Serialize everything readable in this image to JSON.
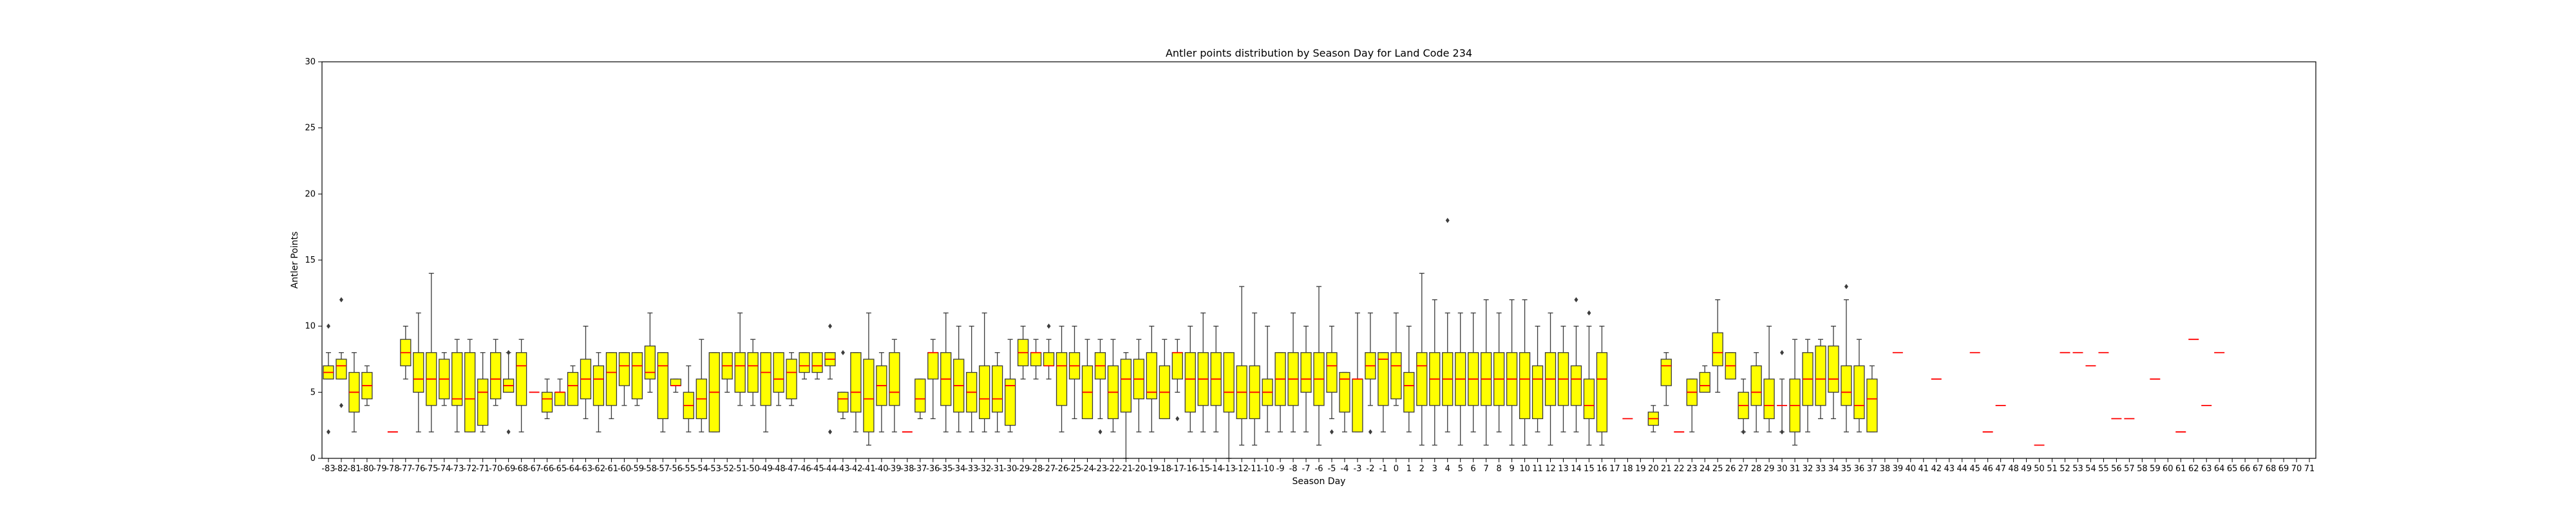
{
  "chart_data": {
    "type": "box",
    "title": "Antler points distribution by Season Day for Land Code 234",
    "xlabel": "Season Day",
    "ylabel": "Antler Points",
    "ylim": [
      0,
      30
    ],
    "yticks": [
      0,
      5,
      10,
      15,
      20,
      25,
      30
    ],
    "grid": false,
    "legend": "none",
    "box_color": "#ffff00",
    "median_color": "#ff0000",
    "edge_color": "#3a3a3a",
    "categories": [
      "-83",
      "-82",
      "-81",
      "-80",
      "-79",
      "-78",
      "-77",
      "-76",
      "-75",
      "-74",
      "-73",
      "-72",
      "-71",
      "-70",
      "-69",
      "-68",
      "-67",
      "-66",
      "-65",
      "-64",
      "-63",
      "-62",
      "-61",
      "-60",
      "-59",
      "-58",
      "-57",
      "-56",
      "-55",
      "-54",
      "-53",
      "-52",
      "-51",
      "-50",
      "-49",
      "-48",
      "-47",
      "-46",
      "-45",
      "-44",
      "-43",
      "-42",
      "-41",
      "-40",
      "-39",
      "-38",
      "-37",
      "-36",
      "-35",
      "-34",
      "-33",
      "-32",
      "-31",
      "-30",
      "-29",
      "-28",
      "-27",
      "-26",
      "-25",
      "-24",
      "-23",
      "-22",
      "-21",
      "-20",
      "-19",
      "-18",
      "-17",
      "-16",
      "-15",
      "-14",
      "-13",
      "-12",
      "-11",
      "-10",
      "-9",
      "-8",
      "-7",
      "-6",
      "-5",
      "-4",
      "-3",
      "-2",
      "-1",
      "0",
      "1",
      "2",
      "3",
      "4",
      "5",
      "6",
      "7",
      "8",
      "9",
      "10",
      "11",
      "12",
      "13",
      "14",
      "15",
      "16",
      "17",
      "18",
      "19",
      "20",
      "21",
      "22",
      "23",
      "24",
      "25",
      "26",
      "27",
      "28",
      "29",
      "30",
      "31",
      "32",
      "33",
      "34",
      "35",
      "36",
      "37",
      "38",
      "39",
      "40",
      "41",
      "42",
      "43",
      "44",
      "45",
      "46",
      "47",
      "48",
      "49",
      "50",
      "51",
      "52",
      "53",
      "54",
      "55",
      "56",
      "57",
      "58",
      "59",
      "60",
      "61",
      "62",
      "63",
      "64",
      "65",
      "66",
      "67",
      "68",
      "69",
      "70",
      "71"
    ],
    "boxes": {
      "-83": {
        "wl": 6,
        "q1": 6,
        "med": 6.5,
        "q3": 7,
        "wh": 8,
        "out": [
          2,
          10
        ]
      },
      "-82": {
        "wl": 6,
        "q1": 6,
        "med": 7,
        "q3": 7.5,
        "wh": 8,
        "out": [
          4,
          12
        ]
      },
      "-81": {
        "wl": 2,
        "q1": 3.5,
        "med": 5,
        "q3": 6.5,
        "wh": 8
      },
      "-80": {
        "wl": 4,
        "q1": 4.5,
        "med": 5.5,
        "q3": 6.5,
        "wh": 7
      },
      "-78": {
        "wl": 2,
        "q1": 2,
        "med": 2,
        "q3": 2,
        "wh": 2
      },
      "-77": {
        "wl": 6,
        "q1": 7,
        "med": 8,
        "q3": 9,
        "wh": 10
      },
      "-76": {
        "wl": 2,
        "q1": 5,
        "med": 6,
        "q3": 8,
        "wh": 11
      },
      "-75": {
        "wl": 2,
        "q1": 4,
        "med": 6,
        "q3": 8,
        "wh": 14
      },
      "-74": {
        "wl": 4,
        "q1": 4.5,
        "med": 6,
        "q3": 7.5,
        "wh": 8
      },
      "-73": {
        "wl": 2,
        "q1": 4,
        "med": 4.5,
        "q3": 8,
        "wh": 9
      },
      "-72": {
        "wl": 2,
        "q1": 2,
        "med": 4.5,
        "q3": 8,
        "wh": 9
      },
      "-71": {
        "wl": 2,
        "q1": 2.5,
        "med": 5,
        "q3": 6,
        "wh": 8
      },
      "-70": {
        "wl": 4,
        "q1": 4.5,
        "med": 6,
        "q3": 8,
        "wh": 9
      },
      "-69": {
        "wl": 5,
        "q1": 5,
        "med": 5.5,
        "q3": 6,
        "wh": 8,
        "out": [
          2,
          8
        ]
      },
      "-68": {
        "wl": 2,
        "q1": 4,
        "med": 7,
        "q3": 8,
        "wh": 9
      },
      "-67": {
        "wl": 5,
        "q1": 5,
        "med": 5,
        "q3": 5,
        "wh": 5
      },
      "-66": {
        "wl": 3,
        "q1": 3.5,
        "med": 4.5,
        "q3": 5,
        "wh": 6
      },
      "-65": {
        "wl": 4,
        "q1": 4,
        "med": 5,
        "q3": 5,
        "wh": 6
      },
      "-64": {
        "wl": 4,
        "q1": 4,
        "med": 5.5,
        "q3": 6.5,
        "wh": 7
      },
      "-63": {
        "wl": 3,
        "q1": 4.5,
        "med": 6,
        "q3": 7.5,
        "wh": 10
      },
      "-62": {
        "wl": 2,
        "q1": 4,
        "med": 6,
        "q3": 7,
        "wh": 8
      },
      "-61": {
        "wl": 3,
        "q1": 4,
        "med": 6.5,
        "q3": 8,
        "wh": 8
      },
      "-60": {
        "wl": 4,
        "q1": 5.5,
        "med": 7,
        "q3": 8,
        "wh": 8
      },
      "-59": {
        "wl": 4,
        "q1": 4.5,
        "med": 7,
        "q3": 8,
        "wh": 8
      },
      "-58": {
        "wl": 5,
        "q1": 6,
        "med": 6.5,
        "q3": 8.5,
        "wh": 11
      },
      "-57": {
        "wl": 2,
        "q1": 3,
        "med": 7,
        "q3": 8,
        "wh": 8
      },
      "-56": {
        "wl": 5,
        "q1": 5.5,
        "med": 5.5,
        "q3": 6,
        "wh": 6
      },
      "-55": {
        "wl": 2,
        "q1": 3,
        "med": 4,
        "q3": 5,
        "wh": 7
      },
      "-54": {
        "wl": 2,
        "q1": 3,
        "med": 4.5,
        "q3": 6,
        "wh": 9
      },
      "-53": {
        "wl": 2,
        "q1": 2,
        "med": 5,
        "q3": 8,
        "wh": 8
      },
      "-52": {
        "wl": 5,
        "q1": 6,
        "med": 7,
        "q3": 8,
        "wh": 8
      },
      "-51": {
        "wl": 4,
        "q1": 5,
        "med": 7,
        "q3": 8,
        "wh": 11
      },
      "-50": {
        "wl": 4,
        "q1": 5,
        "med": 7,
        "q3": 8,
        "wh": 9
      },
      "-49": {
        "wl": 2,
        "q1": 4,
        "med": 6.5,
        "q3": 8,
        "wh": 8
      },
      "-48": {
        "wl": 4,
        "q1": 5,
        "med": 6,
        "q3": 8,
        "wh": 8
      },
      "-47": {
        "wl": 4,
        "q1": 4.5,
        "med": 6.5,
        "q3": 7.5,
        "wh": 8
      },
      "-46": {
        "wl": 6,
        "q1": 6.5,
        "med": 7,
        "q3": 8,
        "wh": 8
      },
      "-45": {
        "wl": 6,
        "q1": 6.5,
        "med": 7,
        "q3": 8,
        "wh": 8
      },
      "-44": {
        "wl": 6,
        "q1": 7,
        "med": 7.5,
        "q3": 8,
        "wh": 8,
        "out": [
          2,
          10
        ]
      },
      "-43": {
        "wl": 3,
        "q1": 3.5,
        "med": 4.5,
        "q3": 5,
        "wh": 5,
        "out": [
          8
        ]
      },
      "-42": {
        "wl": 2,
        "q1": 3.5,
        "med": 5,
        "q3": 8,
        "wh": 8
      },
      "-41": {
        "wl": 1,
        "q1": 2,
        "med": 4.5,
        "q3": 7.5,
        "wh": 11
      },
      "-40": {
        "wl": 2,
        "q1": 4,
        "med": 5.5,
        "q3": 7,
        "wh": 8
      },
      "-39": {
        "wl": 2,
        "q1": 4,
        "med": 5,
        "q3": 8,
        "wh": 9
      },
      "-38": {
        "wl": 2,
        "q1": 2,
        "med": 2,
        "q3": 2,
        "wh": 2
      },
      "-37": {
        "wl": 3,
        "q1": 3.5,
        "med": 4.5,
        "q3": 6,
        "wh": 6
      },
      "-36": {
        "wl": 3,
        "q1": 6,
        "med": 8,
        "q3": 8,
        "wh": 9
      },
      "-35": {
        "wl": 2,
        "q1": 4,
        "med": 6,
        "q3": 8,
        "wh": 11
      },
      "-34": {
        "wl": 2,
        "q1": 3.5,
        "med": 5.5,
        "q3": 7.5,
        "wh": 10
      },
      "-33": {
        "wl": 2,
        "q1": 3.5,
        "med": 5,
        "q3": 6.5,
        "wh": 10
      },
      "-32": {
        "wl": 2,
        "q1": 3,
        "med": 4.5,
        "q3": 7,
        "wh": 11
      },
      "-31": {
        "wl": 2,
        "q1": 3.5,
        "med": 4.5,
        "q3": 7,
        "wh": 8
      },
      "-30": {
        "wl": 2,
        "q1": 2.5,
        "med": 5.5,
        "q3": 6,
        "wh": 9
      },
      "-29": {
        "wl": 6,
        "q1": 7,
        "med": 8,
        "q3": 9,
        "wh": 10
      },
      "-28": {
        "wl": 6,
        "q1": 7,
        "med": 8,
        "q3": 8,
        "wh": 9
      },
      "-27": {
        "wl": 6,
        "q1": 7,
        "med": 7,
        "q3": 8,
        "wh": 9,
        "out": [
          10
        ]
      },
      "-26": {
        "wl": 2,
        "q1": 4,
        "med": 7,
        "q3": 8,
        "wh": 10
      },
      "-25": {
        "wl": 3,
        "q1": 6,
        "med": 7,
        "q3": 8,
        "wh": 10
      },
      "-24": {
        "wl": 3,
        "q1": 3,
        "med": 5,
        "q3": 7,
        "wh": 9
      },
      "-23": {
        "wl": 3,
        "q1": 6,
        "med": 7,
        "q3": 8,
        "wh": 9,
        "out": [
          2
        ]
      },
      "-22": {
        "wl": 2,
        "q1": 3,
        "med": 5,
        "q3": 7,
        "wh": 9
      },
      "-21": {
        "wl": 0,
        "q1": 3.5,
        "med": 6,
        "q3": 7.5,
        "wh": 8
      },
      "-20": {
        "wl": 2,
        "q1": 4.5,
        "med": 6,
        "q3": 7.5,
        "wh": 9
      },
      "-19": {
        "wl": 2,
        "q1": 4.5,
        "med": 5,
        "q3": 8,
        "wh": 10
      },
      "-18": {
        "wl": 3,
        "q1": 3,
        "med": 5,
        "q3": 7,
        "wh": 9
      },
      "-17": {
        "wl": 5,
        "q1": 6,
        "med": 8,
        "q3": 8,
        "wh": 9,
        "out": [
          3
        ]
      },
      "-16": {
        "wl": 2,
        "q1": 3.5,
        "med": 6,
        "q3": 8,
        "wh": 10
      },
      "-15": {
        "wl": 2,
        "q1": 4,
        "med": 6,
        "q3": 8,
        "wh": 11
      },
      "-14": {
        "wl": 2,
        "q1": 4,
        "med": 6,
        "q3": 8,
        "wh": 10
      },
      "-13": {
        "wl": 0,
        "q1": 3.5,
        "med": 5,
        "q3": 8,
        "wh": 8
      },
      "-12": {
        "wl": 1,
        "q1": 3,
        "med": 5,
        "q3": 7,
        "wh": 13
      },
      "-11": {
        "wl": 1,
        "q1": 3,
        "med": 5,
        "q3": 7,
        "wh": 11
      },
      "-10": {
        "wl": 2,
        "q1": 4,
        "med": 5,
        "q3": 6,
        "wh": 10
      },
      "-9": {
        "wl": 2,
        "q1": 4,
        "med": 6,
        "q3": 8,
        "wh": 8
      },
      "-8": {
        "wl": 2,
        "q1": 4,
        "med": 6,
        "q3": 8,
        "wh": 11
      },
      "-7": {
        "wl": 2,
        "q1": 5,
        "med": 6,
        "q3": 8,
        "wh": 10
      },
      "-6": {
        "wl": 1,
        "q1": 4,
        "med": 6,
        "q3": 8,
        "wh": 13
      },
      "-5": {
        "wl": 3,
        "q1": 5,
        "med": 7,
        "q3": 8,
        "wh": 10,
        "out": [
          2
        ]
      },
      "-4": {
        "wl": 2,
        "q1": 3.5,
        "med": 6,
        "q3": 6.5,
        "wh": 6.5
      },
      "-3": {
        "wl": 2,
        "q1": 2,
        "med": 6,
        "q3": 6,
        "wh": 11
      },
      "-2": {
        "wl": 4,
        "q1": 6,
        "med": 7,
        "q3": 8,
        "wh": 11,
        "out": [
          2
        ]
      },
      "-1": {
        "wl": 2,
        "q1": 4,
        "med": 7.5,
        "q3": 8,
        "wh": 8
      },
      "0": {
        "wl": 4,
        "q1": 4.5,
        "med": 7,
        "q3": 8,
        "wh": 11
      },
      "1": {
        "wl": 2,
        "q1": 3.5,
        "med": 5.5,
        "q3": 6.5,
        "wh": 10
      },
      "2": {
        "wl": 1,
        "q1": 4,
        "med": 7,
        "q3": 8,
        "wh": 14
      },
      "3": {
        "wl": 1,
        "q1": 4,
        "med": 6,
        "q3": 8,
        "wh": 12
      },
      "4": {
        "wl": 2,
        "q1": 4,
        "med": 6,
        "q3": 8,
        "wh": 11,
        "out": [
          18
        ]
      },
      "5": {
        "wl": 1,
        "q1": 4,
        "med": 6,
        "q3": 8,
        "wh": 11
      },
      "6": {
        "wl": 2,
        "q1": 4,
        "med": 6,
        "q3": 8,
        "wh": 11
      },
      "7": {
        "wl": 1,
        "q1": 4,
        "med": 6,
        "q3": 8,
        "wh": 12
      },
      "8": {
        "wl": 2,
        "q1": 4,
        "med": 6,
        "q3": 8,
        "wh": 11
      },
      "9": {
        "wl": 1,
        "q1": 4,
        "med": 6,
        "q3": 8,
        "wh": 12
      },
      "10": {
        "wl": 1,
        "q1": 3,
        "med": 6,
        "q3": 8,
        "wh": 12
      },
      "11": {
        "wl": 2,
        "q1": 3,
        "med": 6,
        "q3": 7,
        "wh": 10
      },
      "12": {
        "wl": 1,
        "q1": 4,
        "med": 6,
        "q3": 8,
        "wh": 11
      },
      "13": {
        "wl": 2,
        "q1": 4,
        "med": 6,
        "q3": 8,
        "wh": 10
      },
      "14": {
        "wl": 2,
        "q1": 4,
        "med": 6,
        "q3": 7,
        "wh": 10,
        "out": [
          12
        ]
      },
      "15": {
        "wl": 1,
        "q1": 3,
        "med": 4,
        "q3": 6,
        "wh": 10,
        "out": [
          11
        ]
      },
      "16": {
        "wl": 1,
        "q1": 2,
        "med": 6,
        "q3": 8,
        "wh": 10
      },
      "18": {
        "wl": 3,
        "q1": 3,
        "med": 3,
        "q3": 3,
        "wh": 3
      },
      "20": {
        "wl": 2,
        "q1": 2.5,
        "med": 3,
        "q3": 3.5,
        "wh": 4
      },
      "21": {
        "wl": 4,
        "q1": 5.5,
        "med": 7,
        "q3": 7.5,
        "wh": 8
      },
      "22": {
        "wl": 2,
        "q1": 2,
        "med": 2,
        "q3": 2,
        "wh": 2
      },
      "23": {
        "wl": 2,
        "q1": 4,
        "med": 5,
        "q3": 6,
        "wh": 6
      },
      "24": {
        "wl": 5,
        "q1": 5,
        "med": 5.5,
        "q3": 6.5,
        "wh": 7
      },
      "25": {
        "wl": 5,
        "q1": 7,
        "med": 8,
        "q3": 9.5,
        "wh": 12
      },
      "26": {
        "wl": 6,
        "q1": 6,
        "med": 7,
        "q3": 8,
        "wh": 8
      },
      "27": {
        "wl": 2,
        "q1": 3,
        "med": 4,
        "q3": 5,
        "wh": 6,
        "out": [
          2
        ]
      },
      "28": {
        "wl": 2,
        "q1": 4,
        "med": 5,
        "q3": 7,
        "wh": 8
      },
      "29": {
        "wl": 2,
        "q1": 3,
        "med": 4,
        "q3": 6,
        "wh": 10
      },
      "30": {
        "wl": 2,
        "q1": 4,
        "med": 4,
        "q3": 4,
        "wh": 6,
        "out": [
          2,
          8
        ]
      },
      "31": {
        "wl": 1,
        "q1": 2,
        "med": 4,
        "q3": 6,
        "wh": 9
      },
      "32": {
        "wl": 2,
        "q1": 4,
        "med": 6,
        "q3": 8,
        "wh": 9
      },
      "33": {
        "wl": 3,
        "q1": 4,
        "med": 6,
        "q3": 8.5,
        "wh": 9
      },
      "34": {
        "wl": 3,
        "q1": 5,
        "med": 6,
        "q3": 8.5,
        "wh": 10
      },
      "35": {
        "wl": 2,
        "q1": 4,
        "med": 5,
        "q3": 7,
        "wh": 12,
        "out": [
          13
        ]
      },
      "36": {
        "wl": 2,
        "q1": 3,
        "med": 4,
        "q3": 7,
        "wh": 9
      },
      "37": {
        "wl": 2,
        "q1": 2,
        "med": 4.5,
        "q3": 6,
        "wh": 7
      },
      "39": {
        "wl": 8,
        "q1": 8,
        "med": 8,
        "q3": 8,
        "wh": 8
      },
      "42": {
        "wl": 6,
        "q1": 6,
        "med": 6,
        "q3": 6,
        "wh": 6
      },
      "45": {
        "wl": 8,
        "q1": 8,
        "med": 8,
        "q3": 8,
        "wh": 8
      },
      "46": {
        "wl": 2,
        "q1": 2,
        "med": 2,
        "q3": 2,
        "wh": 2
      },
      "47": {
        "wl": 4,
        "q1": 4,
        "med": 4,
        "q3": 4,
        "wh": 4
      },
      "50": {
        "wl": 1,
        "q1": 1,
        "med": 1,
        "q3": 1,
        "wh": 1
      },
      "52": {
        "wl": 8,
        "q1": 8,
        "med": 8,
        "q3": 8,
        "wh": 8
      },
      "53": {
        "wl": 8,
        "q1": 8,
        "med": 8,
        "q3": 8,
        "wh": 8
      },
      "54": {
        "wl": 7,
        "q1": 7,
        "med": 7,
        "q3": 7,
        "wh": 7
      },
      "55": {
        "wl": 8,
        "q1": 8,
        "med": 8,
        "q3": 8,
        "wh": 8
      },
      "56": {
        "wl": 3,
        "q1": 3,
        "med": 3,
        "q3": 3,
        "wh": 3
      },
      "57": {
        "wl": 3,
        "q1": 3,
        "med": 3,
        "q3": 3,
        "wh": 3
      },
      "59": {
        "wl": 6,
        "q1": 6,
        "med": 6,
        "q3": 6,
        "wh": 6
      },
      "61": {
        "wl": 2,
        "q1": 2,
        "med": 2,
        "q3": 2,
        "wh": 2
      },
      "62": {
        "wl": 9,
        "q1": 9,
        "med": 9,
        "q3": 9,
        "wh": 9
      },
      "63": {
        "wl": 4,
        "q1": 4,
        "med": 4,
        "q3": 4,
        "wh": 4
      },
      "64": {
        "wl": 8,
        "q1": 8,
        "med": 8,
        "q3": 8,
        "wh": 8
      }
    }
  }
}
